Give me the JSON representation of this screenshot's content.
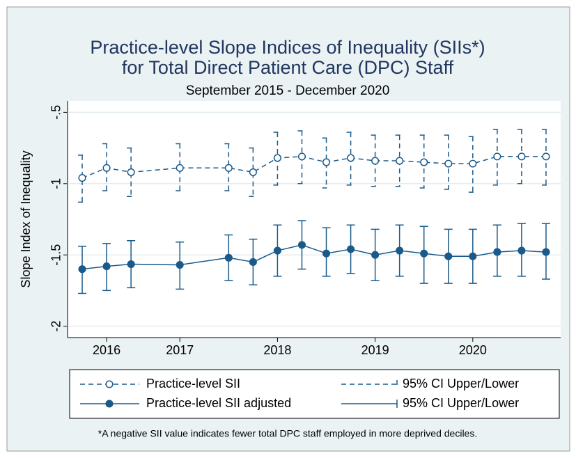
{
  "chart_data": {
    "type": "line",
    "title": [
      "Practice-level Slope Indices of Inequality (SIIs*)",
      "for Total Direct Patient Care (DPC) Staff"
    ],
    "subtitle": "September 2015 - December 2020",
    "y_label": "Slope Index of Inequality",
    "note": "*A negative SII value indicates fewer total DPC staff employed in more deprived deciles.",
    "x": [
      2016.0,
      2016.25,
      2016.5,
      2017.0,
      2017.5,
      2017.75,
      2018.0,
      2018.25,
      2018.5,
      2018.75,
      2019.0,
      2019.25,
      2019.5,
      2019.75,
      2020.0,
      2020.25,
      2020.5,
      2020.75
    ],
    "xlim": [
      2015.85,
      2020.9
    ],
    "xticks": [
      {
        "value": 2016.25,
        "label": "2016"
      },
      2017,
      2018,
      2019,
      2020
    ],
    "ylim": [
      -2.08,
      -0.42
    ],
    "yticks": [
      -2,
      -1.5,
      -1,
      {
        "value": -0.5,
        "label": "-.5"
      }
    ],
    "grid": true,
    "series": [
      {
        "name": "Practice-level SII",
        "ci_name": "95% CI Upper/Lower",
        "color": "#1a5a8a",
        "marker": "hollow",
        "dashed": true,
        "values": [
          -0.96,
          -0.89,
          -0.92,
          -0.89,
          -0.89,
          -0.92,
          -0.82,
          -0.81,
          -0.85,
          -0.82,
          -0.84,
          -0.84,
          -0.85,
          -0.86,
          -0.86,
          -0.81,
          -0.81,
          -0.81
        ],
        "upper": [
          -0.8,
          -0.72,
          -0.75,
          -0.72,
          -0.72,
          -0.75,
          -0.64,
          -0.63,
          -0.68,
          -0.64,
          -0.66,
          -0.66,
          -0.66,
          -0.66,
          -0.67,
          -0.62,
          -0.62,
          -0.62
        ],
        "lower": [
          -1.13,
          -1.05,
          -1.09,
          -1.05,
          -1.05,
          -1.09,
          -1.01,
          -1.0,
          -1.03,
          -1.01,
          -1.02,
          -1.02,
          -1.03,
          -1.04,
          -1.06,
          -1.01,
          -1.0,
          -1.01
        ]
      },
      {
        "name": "Practice-level SII adjusted",
        "ci_name": "95% CI Upper/Lower",
        "color": "#1a5a8a",
        "marker": "filled",
        "dashed": false,
        "values": [
          -1.6,
          -1.58,
          -1.565,
          -1.57,
          -1.52,
          -1.55,
          -1.47,
          -1.43,
          -1.49,
          -1.46,
          -1.5,
          -1.47,
          -1.49,
          -1.51,
          -1.51,
          -1.48,
          -1.47,
          -1.48
        ],
        "upper": [
          -1.44,
          -1.42,
          -1.4,
          -1.41,
          -1.36,
          -1.39,
          -1.29,
          -1.26,
          -1.31,
          -1.29,
          -1.32,
          -1.29,
          -1.3,
          -1.32,
          -1.32,
          -1.29,
          -1.28,
          -1.28
        ],
        "lower": [
          -1.77,
          -1.75,
          -1.73,
          -1.74,
          -1.68,
          -1.71,
          -1.65,
          -1.6,
          -1.65,
          -1.63,
          -1.68,
          -1.65,
          -1.7,
          -1.7,
          -1.7,
          -1.65,
          -1.65,
          -1.67
        ]
      }
    ]
  }
}
